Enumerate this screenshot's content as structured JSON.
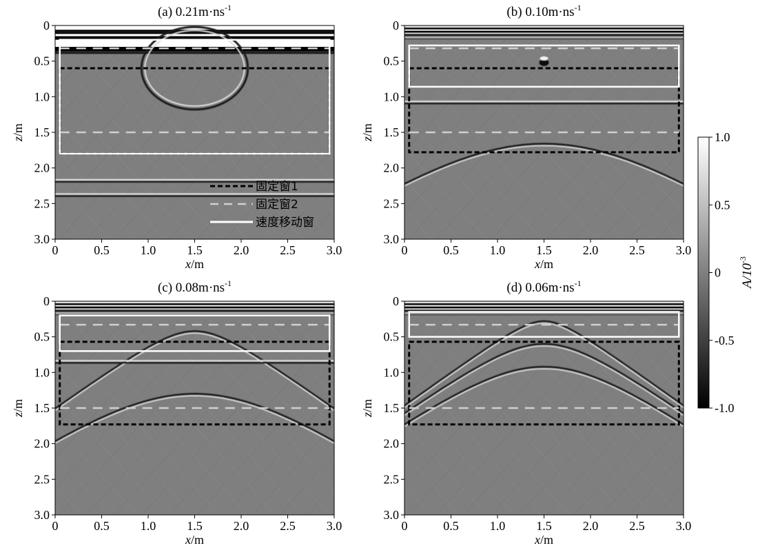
{
  "chart_data": [
    {
      "type": "heatmap",
      "title": "(a) 0.21m·ns",
      "title_sup": "-1",
      "xlabel": "x/m",
      "ylabel": "z/m",
      "xlim": [
        0,
        3.0
      ],
      "ylim": [
        3.0,
        0
      ],
      "xticks": [
        "0",
        "0.5",
        "1.0",
        "1.5",
        "2.0",
        "2.5",
        "3.0"
      ],
      "yticks": [
        "0",
        "0.5",
        "1.0",
        "1.5",
        "2.0",
        "2.5",
        "3.0"
      ],
      "velocity_window": {
        "x": [
          0.05,
          2.95
        ],
        "z": [
          0.2,
          1.8
        ]
      },
      "fixed_window_1": {
        "x": [
          0.05,
          2.95
        ],
        "z": [
          0.6,
          1.8
        ]
      },
      "fixed_window_2_lines_z": [
        0.32,
        1.5
      ],
      "reflectors": [
        {
          "kind": "arc",
          "center_x": 1.5,
          "apex_z": 1.15,
          "radius": 0.55
        },
        {
          "kind": "flat",
          "z": 2.38
        },
        {
          "kind": "flat",
          "z": 2.18
        }
      ],
      "legend": {
        "position": "bottom-right",
        "entries": [
          "固定窗1",
          "固定窗2",
          "速度移动窗"
        ]
      }
    },
    {
      "type": "heatmap",
      "title": "(b) 0.10m·ns",
      "title_sup": "-1",
      "xlabel": "x/m",
      "ylabel": "z/m",
      "xlim": [
        0,
        3.0
      ],
      "ylim": [
        3.0,
        0
      ],
      "xticks": [
        "0",
        "0.5",
        "1.0",
        "1.5",
        "2.0",
        "2.5",
        "3.0"
      ],
      "yticks": [
        "0",
        "0.5",
        "1.0",
        "1.5",
        "2.0",
        "2.5",
        "3.0"
      ],
      "velocity_window": {
        "x": [
          0.05,
          2.95
        ],
        "z": [
          0.28,
          0.86
        ]
      },
      "fixed_window_1": {
        "x": [
          0.05,
          2.95
        ],
        "z": [
          0.6,
          1.78
        ]
      },
      "fixed_window_2_lines_z": [
        0.32,
        1.5
      ],
      "reflectors": [
        {
          "kind": "point",
          "x": 1.5,
          "z": 0.52
        },
        {
          "kind": "flat",
          "z": 1.08
        },
        {
          "kind": "hyperbola",
          "apex_x": 1.5,
          "apex_z": 1.66
        }
      ]
    },
    {
      "type": "heatmap",
      "title": "(c) 0.08m·ns",
      "title_sup": "-1",
      "xlabel": "x/m",
      "ylabel": "z/m",
      "xlim": [
        0,
        3.0
      ],
      "ylim": [
        3.0,
        0
      ],
      "xticks": [
        "0",
        "0.5",
        "1.0",
        "1.5",
        "2.0",
        "2.5",
        "3.0"
      ],
      "yticks": [
        "0",
        "0.5",
        "1.0",
        "1.5",
        "2.0",
        "2.5",
        "3.0"
      ],
      "velocity_window": {
        "x": [
          0.05,
          2.95
        ],
        "z": [
          0.2,
          0.7
        ]
      },
      "fixed_window_1": {
        "x": [
          0.05,
          2.95
        ],
        "z": [
          0.57,
          1.73
        ]
      },
      "fixed_window_2_lines_z": [
        0.33,
        1.5
      ],
      "reflectors": [
        {
          "kind": "hyperbola",
          "apex_x": 1.5,
          "apex_z": 0.42
        },
        {
          "kind": "flat",
          "z": 0.85
        },
        {
          "kind": "hyperbola",
          "apex_x": 1.5,
          "apex_z": 1.3
        }
      ]
    },
    {
      "type": "heatmap",
      "title": "(d) 0.06m·ns",
      "title_sup": "-1",
      "xlabel": "x/m",
      "ylabel": "z/m",
      "xlim": [
        0,
        3.0
      ],
      "ylim": [
        3.0,
        0
      ],
      "xticks": [
        "0",
        "0.5",
        "1.0",
        "1.5",
        "2.0",
        "2.5",
        "3.0"
      ],
      "yticks": [
        "0",
        "0.5",
        "1.0",
        "1.5",
        "2.0",
        "2.5",
        "3.0"
      ],
      "velocity_window": {
        "x": [
          0.05,
          2.95
        ],
        "z": [
          0.15,
          0.5
        ]
      },
      "fixed_window_1": {
        "x": [
          0.05,
          2.95
        ],
        "z": [
          0.57,
          1.73
        ]
      },
      "fixed_window_2_lines_z": [
        0.33,
        1.5
      ],
      "reflectors": [
        {
          "kind": "hyperbola",
          "apex_x": 1.5,
          "apex_z": 0.28
        },
        {
          "kind": "hyperbola",
          "apex_x": 1.5,
          "apex_z": 0.6
        },
        {
          "kind": "hyperbola",
          "apex_x": 1.5,
          "apex_z": 0.92
        }
      ]
    }
  ],
  "colorbar": {
    "label": "A/10",
    "label_sup": "-3",
    "range": [
      -1.0,
      1.0
    ],
    "ticks": [
      "1.0",
      "0.5",
      "0",
      "-0.5",
      "-1.0"
    ],
    "tick_values": [
      1.0,
      0.5,
      0,
      -0.5,
      -1.0
    ],
    "colormap": "grayscale (black = -1.0, white = 1.0)"
  },
  "colors": {
    "background_gray": "#7f7f7f",
    "fixed_window_1": "#000000",
    "fixed_window_2": "#d0d0d0",
    "velocity_window": "#ffffff"
  }
}
